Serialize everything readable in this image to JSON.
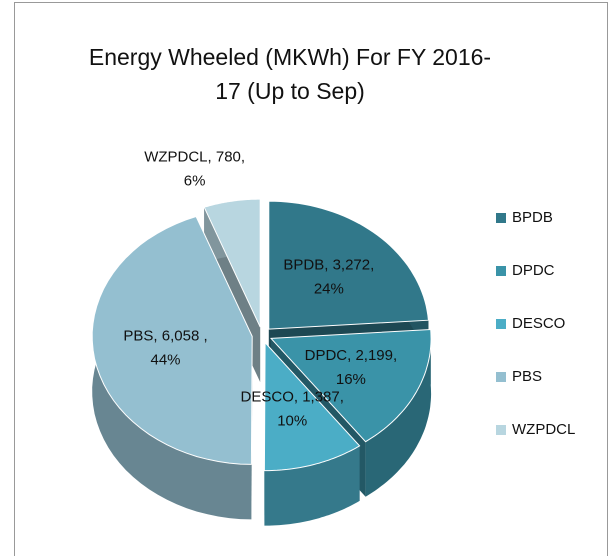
{
  "chart_data": {
    "type": "pie",
    "title": "Energy  Wheeled (MKWh) For FY 2016-17 (Up to Sep)",
    "categories": [
      "BPDB",
      "DPDC",
      "DESCO",
      "PBS",
      "WZPDCL"
    ],
    "values": [
      3272,
      2199,
      1387,
      6058,
      780
    ],
    "value_labels": [
      "BPDB, 3,272,",
      "DPDC, 2,199,",
      "DESCO, 1,387,",
      "PBS, 6,058 ,",
      "WZPDCL, 780,"
    ],
    "percent_labels": [
      "24%",
      "16%",
      "10%",
      "44%",
      "6%"
    ],
    "colors": [
      "#31788a",
      "#3a93a8",
      "#4badc6",
      "#94bfd0",
      "#b8d6e0"
    ],
    "legend": "right"
  }
}
